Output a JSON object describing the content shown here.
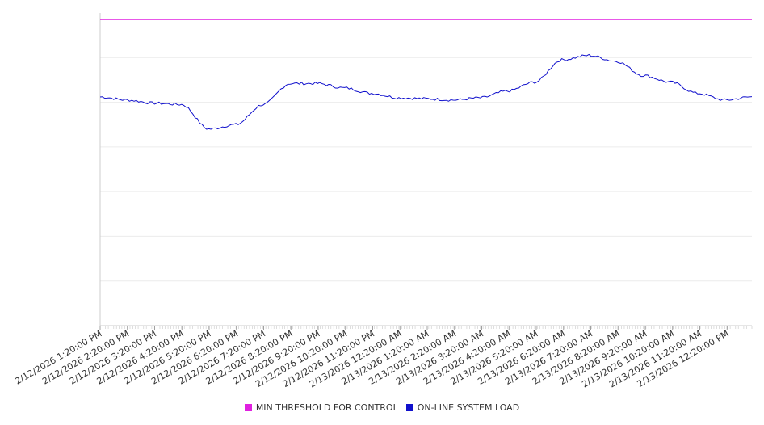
{
  "chart_data": {
    "type": "line",
    "title": "",
    "xlabel": "",
    "ylabel": "",
    "y_tick_labels_shown": false,
    "grid": "horizontal",
    "legend_position": "bottom-center",
    "x_tick_labels": [
      "2/12/2026 1:20:00 PM",
      "2/12/2026 2:20:00 PM",
      "2/12/2026 3:20:00 PM",
      "2/12/2026 4:20:00 PM",
      "2/12/2026 5:20:00 PM",
      "2/12/2026 6:20:00 PM",
      "2/12/2026 7:20:00 PM",
      "2/12/2026 8:20:00 PM",
      "2/12/2026 9:20:00 PM",
      "2/12/2026 10:20:00 PM",
      "2/12/2026 11:20:00 PM",
      "2/13/2026 12:20:00 AM",
      "2/13/2026 1:20:00 AM",
      "2/13/2026 2:20:00 AM",
      "2/13/2026 3:20:00 AM",
      "2/13/2026 4:20:00 AM",
      "2/13/2026 5:20:00 AM",
      "2/13/2026 6:20:00 AM",
      "2/13/2026 7:20:00 AM",
      "2/13/2026 8:20:00 AM",
      "2/13/2026 9:20:00 AM",
      "2/13/2026 10:20:00 AM",
      "2/13/2026 11:20:00 AM",
      "2/13/2026 12:20:00 PM"
    ],
    "ylim": [
      0,
      7
    ],
    "series": [
      {
        "name": "MIN THRESHOLD FOR CONTROL",
        "color": "#e020e0",
        "values": [
          6.85,
          6.85,
          6.85,
          6.85,
          6.85,
          6.85,
          6.85,
          6.85,
          6.85,
          6.85,
          6.85,
          6.85,
          6.85,
          6.85,
          6.85,
          6.85,
          6.85,
          6.85,
          6.85,
          6.85,
          6.85,
          6.85,
          6.85,
          6.85,
          6.85
        ]
      },
      {
        "name": "ON-LINE SYSTEM LOAD",
        "color": "#1010cc",
        "values": [
          5.12,
          5.05,
          4.98,
          4.95,
          4.4,
          4.5,
          4.95,
          5.42,
          5.42,
          5.32,
          5.2,
          5.1,
          5.08,
          5.05,
          5.1,
          5.25,
          5.45,
          5.95,
          6.05,
          5.92,
          5.6,
          5.45,
          5.2,
          5.05,
          5.12
        ]
      }
    ]
  }
}
